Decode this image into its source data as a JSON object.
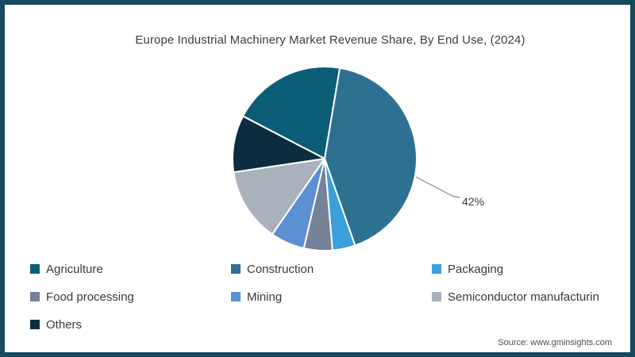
{
  "frame": {
    "border_color": "#17495e",
    "background_color": "#ffffff"
  },
  "chart_data": {
    "type": "pie",
    "title": "Europe Industrial Machinery Market Revenue Share, By End Use, (2024)",
    "unit": "percent_share",
    "start_angle_deg": -62.5,
    "legend_position": "bottom",
    "slices": [
      {
        "id": "agriculture",
        "label": "Agriculture",
        "value": 20,
        "color": "#0b5d76"
      },
      {
        "id": "construction",
        "label": "Construction",
        "value": 42,
        "color": "#2e7092"
      },
      {
        "id": "packaging",
        "label": "Packaging",
        "value": 4,
        "color": "#3b9fdb"
      },
      {
        "id": "food-processing",
        "label": "Food processing",
        "value": 5,
        "color": "#75829a"
      },
      {
        "id": "mining",
        "label": "Mining",
        "value": 6,
        "color": "#5b90d2"
      },
      {
        "id": "semiconductor-manufacturing",
        "label": "Semiconductor manufacturin",
        "value": 13,
        "color": "#a9b2bc"
      },
      {
        "id": "others",
        "label": "Others",
        "value": 10,
        "color": "#0b2d3f"
      }
    ],
    "annotations": [
      {
        "text": "42%",
        "slice": "construction",
        "line_points": [
          [
            518,
            217
          ],
          [
            564,
            241
          ],
          [
            573,
            243
          ]
        ],
        "line_color": "#8a8a8a"
      }
    ]
  },
  "source": {
    "text": "Source: www.gminsights.com"
  }
}
